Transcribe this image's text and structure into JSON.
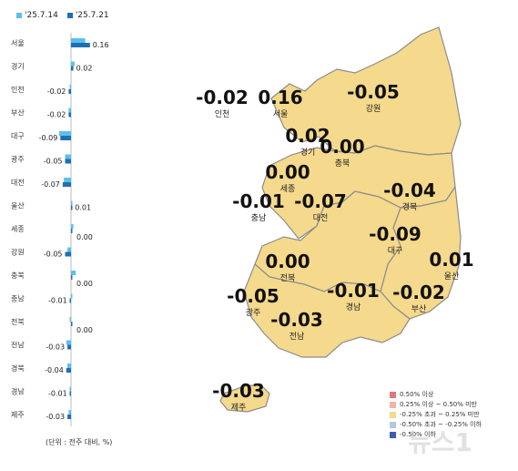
{
  "legend": {
    "prev_label": "'25.7.14",
    "curr_label": "'25.7.21",
    "prev_color": "#5bc0eb",
    "curr_color": "#1f6fb2"
  },
  "unit_note": "(단위 : 전주 대비, %)",
  "chart_data": {
    "type": "bar",
    "orientation": "horizontal",
    "categories": [
      "서울",
      "경기",
      "인천",
      "부산",
      "대구",
      "광주",
      "대전",
      "울산",
      "세종",
      "강원",
      "충북",
      "충남",
      "전북",
      "전남",
      "경북",
      "경남",
      "제주"
    ],
    "values_label": [
      "0.16",
      "0.02",
      "-0.02",
      "-0.02",
      "-0.09",
      "-0.05",
      "-0.07",
      "0.01",
      "0.00",
      "-0.05",
      "0.00",
      "-0.01",
      "0.00",
      "-0.03",
      "-0.04",
      "-0.01",
      "-0.03"
    ],
    "series": [
      {
        "name": "'25.7.14",
        "values": [
          0.12,
          0.03,
          -0.01,
          -0.02,
          -0.1,
          -0.05,
          -0.06,
          0.0,
          0.02,
          -0.03,
          0.04,
          0.0,
          -0.01,
          -0.04,
          -0.03,
          -0.01,
          -0.02
        ]
      },
      {
        "name": "'25.7.21",
        "values": [
          0.16,
          0.02,
          -0.02,
          -0.02,
          -0.09,
          -0.05,
          -0.07,
          0.01,
          0.0,
          -0.05,
          0.0,
          -0.01,
          0.0,
          -0.03,
          -0.04,
          -0.01,
          -0.03
        ]
      }
    ]
  },
  "map": {
    "regions": [
      {
        "name": "서울",
        "value": "0.16"
      },
      {
        "name": "인천",
        "value": "-0.02"
      },
      {
        "name": "경기",
        "value": "0.02"
      },
      {
        "name": "강원",
        "value": "-0.05"
      },
      {
        "name": "충북",
        "value": "0.00"
      },
      {
        "name": "세종",
        "value": "0.00"
      },
      {
        "name": "충남",
        "value": "-0.01"
      },
      {
        "name": "대전",
        "value": "-0.07"
      },
      {
        "name": "경북",
        "value": "-0.04"
      },
      {
        "name": "대구",
        "value": "-0.09"
      },
      {
        "name": "울산",
        "value": "0.01"
      },
      {
        "name": "전북",
        "value": "0.00"
      },
      {
        "name": "광주",
        "value": "-0.05"
      },
      {
        "name": "경남",
        "value": "-0.01"
      },
      {
        "name": "부산",
        "value": "-0.02"
      },
      {
        "name": "전남",
        "value": "-0.03"
      },
      {
        "name": "제주",
        "value": "-0.03"
      }
    ],
    "fill_color": "#f5d98c",
    "legend": [
      {
        "label": "0.50% 이상",
        "color": "#e07a7a"
      },
      {
        "label": "0.25% 이상 ~ 0.50% 미만",
        "color": "#f2b3a8"
      },
      {
        "label": "-0.25% 초과 ~ 0.25% 미만",
        "color": "#f5d98c"
      },
      {
        "label": "-0.50% 초과 ~ -0.25% 이하",
        "color": "#b8c6e6"
      },
      {
        "label": "-0.50% 이하",
        "color": "#3b5fb0"
      }
    ]
  },
  "watermark": "뉴스1"
}
